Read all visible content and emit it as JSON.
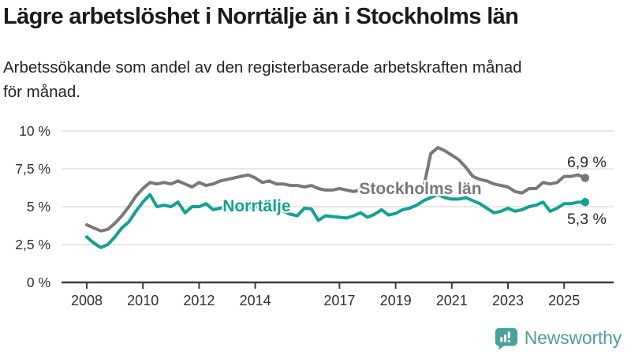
{
  "header": {
    "title": "Lägre arbetslöshet i Norrtälje än i Stockholms län",
    "subtitle_lines": [
      "Arbetssökande som andel av den registerbaserade arbetskraften månad",
      "för månad."
    ]
  },
  "footer": {
    "brand": "Newsworthy",
    "brand_color": "#4f9d99",
    "logo_icon": "speech-bubble-bar-chart-icon"
  },
  "chart_data": {
    "type": "line",
    "title": "Lägre arbetslöshet i Norrtälje än i Stockholms län",
    "xlabel": "",
    "ylabel": "",
    "x_unit": "year",
    "x_start": 2008,
    "x_step": 0.25,
    "xlim": [
      2007.1,
      2026.8
    ],
    "ylim": [
      0,
      10
    ],
    "grid": true,
    "gridline_color": "#d9d9d9",
    "axis_color": "#3d3d3d",
    "tick_label_color": "#303030",
    "x_ticks": [
      {
        "label": "2008",
        "year": 2008
      },
      {
        "label": "2010",
        "year": 2010
      },
      {
        "label": "2012",
        "year": 2012
      },
      {
        "label": "2014",
        "year": 2014
      },
      {
        "label": "2017",
        "year": 2017
      },
      {
        "label": "2019",
        "year": 2019
      },
      {
        "label": "2021",
        "year": 2021
      },
      {
        "label": "2023",
        "year": 2023
      },
      {
        "label": "2025",
        "year": 2025
      }
    ],
    "y_ticks": [
      {
        "label": "10 %",
        "value": 10
      },
      {
        "label": "7,5 %",
        "value": 7.5
      },
      {
        "label": "5 %",
        "value": 5
      },
      {
        "label": "2,5 %",
        "value": 2.5
      },
      {
        "label": "0 %",
        "value": 0
      }
    ],
    "series": [
      {
        "name": "Norrtälje",
        "color": "#12a192",
        "end_label": "5,3 %",
        "end_value": 5.3,
        "end_label_position": "below",
        "label_anchor": {
          "year": 2014.05,
          "value": 4.69
        },
        "values": [
          3.0,
          2.6,
          2.3,
          2.5,
          3.0,
          3.6,
          4.0,
          4.7,
          5.3,
          5.8,
          5.0,
          5.1,
          5.0,
          5.3,
          4.6,
          5.0,
          5.0,
          5.2,
          4.8,
          4.9,
          5.0,
          5.2,
          5.0,
          4.9,
          5.1,
          4.8,
          4.7,
          4.9,
          4.7,
          4.5,
          4.4,
          4.9,
          4.85,
          4.1,
          4.4,
          4.35,
          4.3,
          4.25,
          4.4,
          4.6,
          4.3,
          4.5,
          4.8,
          4.45,
          4.55,
          4.8,
          4.9,
          5.1,
          5.4,
          5.6,
          5.8,
          5.6,
          5.5,
          5.5,
          5.6,
          5.4,
          5.2,
          4.9,
          4.6,
          4.7,
          4.9,
          4.7,
          4.8,
          5.0,
          5.1,
          5.3,
          4.7,
          4.9,
          5.2,
          5.2,
          5.3,
          5.3
        ]
      },
      {
        "name": "Stockholms län",
        "color": "#77787b",
        "end_label": "6,9 %",
        "end_value": 6.9,
        "end_label_position": "above",
        "label_anchor": {
          "year": 2019.88,
          "value": 5.83
        },
        "values": [
          3.8,
          3.6,
          3.4,
          3.5,
          3.9,
          4.4,
          5.0,
          5.7,
          6.2,
          6.6,
          6.5,
          6.6,
          6.5,
          6.7,
          6.5,
          6.3,
          6.6,
          6.4,
          6.5,
          6.7,
          6.8,
          6.9,
          7.0,
          7.1,
          6.9,
          6.6,
          6.7,
          6.5,
          6.5,
          6.4,
          6.4,
          6.3,
          6.4,
          6.2,
          6.1,
          6.1,
          6.2,
          6.1,
          6.0,
          6.1,
          6.1,
          6.2,
          6.1,
          6.0,
          6.1,
          6.2,
          6.2,
          6.3,
          6.3,
          8.5,
          8.9,
          8.7,
          8.4,
          8.1,
          7.6,
          7.0,
          6.8,
          6.7,
          6.5,
          6.4,
          6.3,
          6.0,
          5.9,
          6.2,
          6.2,
          6.6,
          6.5,
          6.6,
          7.0,
          7.0,
          7.1,
          6.9
        ]
      }
    ],
    "end_value_label_color": "#2b2b2b"
  }
}
